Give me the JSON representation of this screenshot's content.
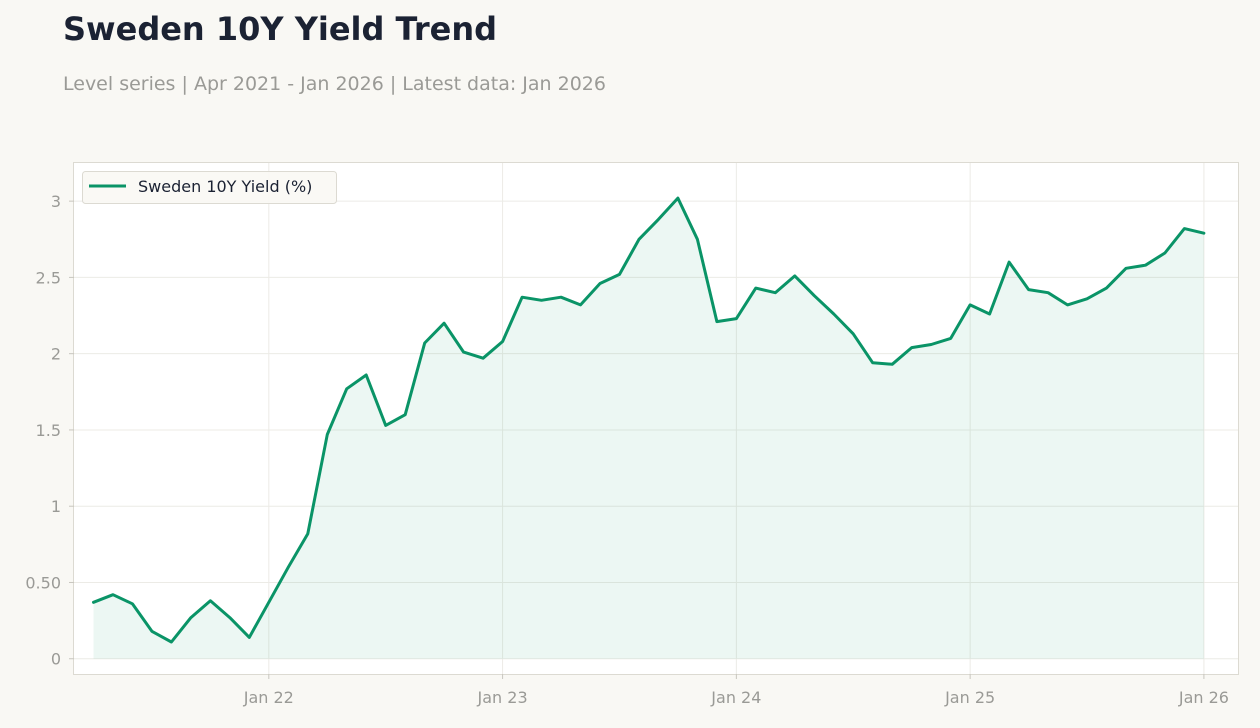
{
  "header": {
    "title": "Sweden 10Y Yield Trend",
    "subtitle": "Level series | Apr 2021 - Jan 2026 | Latest data: Jan 2026"
  },
  "chart_data": {
    "type": "area",
    "title": "Sweden 10Y Yield Trend",
    "subtitle": "Level series | Apr 2021 - Jan 2026 | Latest data: Jan 2026",
    "xlabel": "",
    "ylabel": "",
    "ylim": [
      -0.1,
      3.25
    ],
    "y_ticks": [
      0,
      0.5,
      1,
      1.5,
      2,
      2.5,
      3
    ],
    "y_tick_labels": [
      "0",
      "0.50",
      "1",
      "1.5",
      "2",
      "2.5",
      "3"
    ],
    "x_ticks": [
      "2022-01",
      "2023-01",
      "2024-01",
      "2025-01",
      "2026-01"
    ],
    "x_tick_labels": [
      "Jan 22",
      "Jan 23",
      "Jan 24",
      "Jan 25",
      "Jan 26"
    ],
    "grid": true,
    "legend_position": "top-left",
    "color": "#0a9467",
    "series": [
      {
        "name": "Sweden 10Y Yield (%)",
        "x": [
          "2021-04",
          "2021-05",
          "2021-06",
          "2021-07",
          "2021-08",
          "2021-09",
          "2021-10",
          "2021-11",
          "2021-12",
          "2022-01",
          "2022-02",
          "2022-03",
          "2022-04",
          "2022-05",
          "2022-06",
          "2022-07",
          "2022-08",
          "2022-09",
          "2022-10",
          "2022-11",
          "2022-12",
          "2023-01",
          "2023-02",
          "2023-03",
          "2023-04",
          "2023-05",
          "2023-06",
          "2023-07",
          "2023-08",
          "2023-09",
          "2023-10",
          "2023-11",
          "2023-12",
          "2024-01",
          "2024-02",
          "2024-03",
          "2024-04",
          "2024-05",
          "2024-06",
          "2024-07",
          "2024-08",
          "2024-09",
          "2024-10",
          "2024-11",
          "2024-12",
          "2025-01",
          "2025-02",
          "2025-03",
          "2025-04",
          "2025-05",
          "2025-06",
          "2025-07",
          "2025-08",
          "2025-09",
          "2025-10",
          "2025-11",
          "2025-12",
          "2026-01"
        ],
        "values": [
          0.37,
          0.42,
          0.36,
          0.18,
          0.11,
          0.27,
          0.38,
          0.27,
          0.14,
          0.37,
          0.6,
          0.82,
          1.47,
          1.77,
          1.86,
          1.53,
          1.6,
          2.07,
          2.2,
          2.01,
          1.97,
          2.08,
          2.37,
          2.35,
          2.37,
          2.32,
          2.46,
          2.52,
          2.75,
          2.88,
          3.02,
          2.75,
          2.21,
          2.23,
          2.43,
          2.4,
          2.51,
          2.38,
          2.26,
          2.13,
          1.94,
          1.93,
          2.04,
          2.06,
          2.1,
          2.32,
          2.26,
          2.6,
          2.42,
          2.4,
          2.32,
          2.36,
          2.43,
          2.56,
          2.58,
          2.66,
          2.82,
          2.79
        ]
      }
    ]
  }
}
